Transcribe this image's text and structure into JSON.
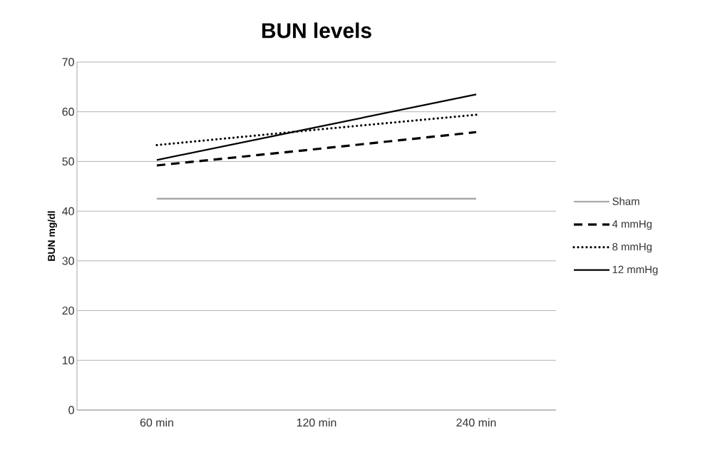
{
  "chart_data": {
    "type": "line",
    "title": "BUN levels",
    "ylabel": "BUN mg/dl",
    "categories": [
      "60 min",
      "120 min",
      "240 min"
    ],
    "series": [
      {
        "name": "Sham",
        "color": "#a0a0a0",
        "line_style": "solid",
        "values": [
          42.5,
          42.5,
          42.5
        ]
      },
      {
        "name": "4 mmHg",
        "color": "#000000",
        "line_style": "dashed",
        "values": [
          49.2,
          52.5,
          55.9
        ]
      },
      {
        "name": "8 mmHg",
        "color": "#000000",
        "line_style": "dotted",
        "values": [
          53.3,
          56.4,
          59.4
        ]
      },
      {
        "name": "12 mmHg",
        "color": "#000000",
        "line_style": "solid",
        "values": [
          50.3,
          56.9,
          63.5
        ]
      }
    ],
    "ylim": [
      0,
      70
    ],
    "yticks": [
      0,
      10,
      20,
      30,
      40,
      50,
      60,
      70
    ],
    "grid": "y",
    "legend": "right",
    "marker": "none"
  }
}
